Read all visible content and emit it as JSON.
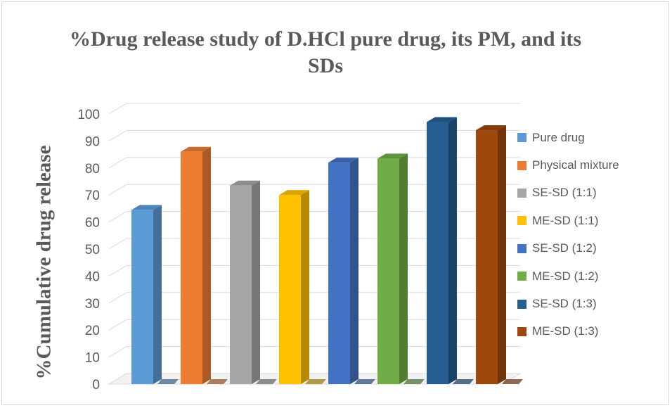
{
  "chart_data": {
    "type": "bar",
    "title": "%Drug release study of D.HCl pure drug, its PM, and its SDs",
    "xlabel": "",
    "ylabel": "%Cumulative drug release",
    "ylim": [
      0,
      100
    ],
    "yticks": [
      0,
      10,
      20,
      30,
      40,
      50,
      60,
      70,
      80,
      90,
      100
    ],
    "grid": true,
    "legend_position": "right",
    "style": "3d-clustered-column",
    "series": [
      {
        "name": "Pure drug",
        "values": [
          64.5
        ],
        "color": "#5B9BD5"
      },
      {
        "name": "Physical mixture",
        "values": [
          86
        ],
        "color": "#ED7D31"
      },
      {
        "name": "SE-SD (1:1)",
        "values": [
          73.5
        ],
        "color": "#A5A5A5"
      },
      {
        "name": "ME-SD (1:1)",
        "values": [
          70
        ],
        "color": "#FFC000"
      },
      {
        "name": "SE-SD (1:2)",
        "values": [
          82
        ],
        "color": "#4472C4"
      },
      {
        "name": "ME-SD (1:2)",
        "values": [
          83.5
        ],
        "color": "#70AD47"
      },
      {
        "name": "SE-SD (1:3)",
        "values": [
          97
        ],
        "color": "#255E91"
      },
      {
        "name": "ME-SD (1:3)",
        "values": [
          94
        ],
        "color": "#9E480E"
      }
    ]
  }
}
